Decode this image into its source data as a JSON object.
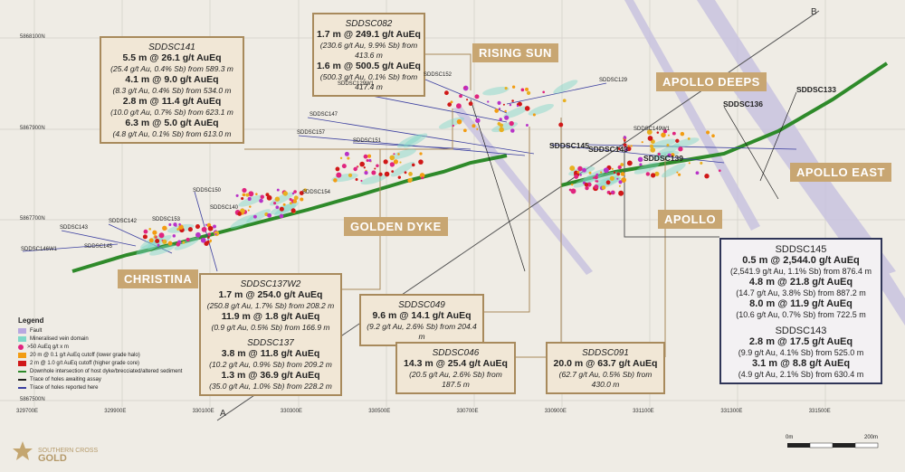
{
  "zones": [
    "RISING SUN",
    "APOLLO DEEPS",
    "APOLLO EAST",
    "APOLLO",
    "GOLDEN DYKE",
    "CHRISTINA"
  ],
  "callouts": [
    {
      "sections": [
        {
          "hole": "SDDSC141",
          "results": [
            {
              "grade": "5.5 m @ 26.1 g/t AuEq",
              "detail": "(25.4 g/t Au, 0.4% Sb) from 589.3 m"
            },
            {
              "grade": "4.1 m @ 9.0 g/t AuEq",
              "detail": "(8.3 g/t Au, 0.4% Sb) from 534.0 m"
            },
            {
              "grade": "2.8 m @ 11.4 g/t AuEq",
              "detail": "(10.0 g/t Au, 0.7% Sb) from 623.1 m"
            },
            {
              "grade": "6.3 m @ 5.0 g/t AuEq",
              "detail": "(4.8 g/t Au, 0.1% Sb) from 613.0 m"
            }
          ]
        }
      ]
    },
    {
      "sections": [
        {
          "hole": "SDDSC082",
          "results": [
            {
              "grade": "1.7 m @ 249.1 g/t AuEq",
              "detail": "(230.6 g/t Au, 9.9% Sb) from 413.6 m"
            },
            {
              "grade": "1.6 m @ 500.5 g/t AuEq",
              "detail": "(500.3 g/t Au, 0.1% Sb) from 417.4 m"
            }
          ]
        }
      ]
    },
    {
      "sections": [
        {
          "hole": "SDDSC137W2",
          "results": [
            {
              "grade": "1.7 m @ 254.0 g/t AuEq",
              "detail": "(250.8 g/t Au, 1.7% Sb) from 208.2 m"
            },
            {
              "grade": "11.9 m @ 1.8 g/t AuEq",
              "detail": "(0.9 g/t Au, 0.5% Sb) from 166.9 m"
            }
          ]
        },
        {
          "hole": "SDDSC137",
          "results": [
            {
              "grade": "3.8 m @ 11.8 g/t AuEq",
              "detail": "(10.2 g/t Au, 0.9% Sb) from 209.2 m"
            },
            {
              "grade": "1.3 m @ 36.9 g/t AuEq",
              "detail": "(35.0 g/t Au, 1.0% Sb) from 228.2 m"
            }
          ]
        }
      ]
    },
    {
      "sections": [
        {
          "hole": "SDDSC049",
          "results": [
            {
              "grade": "9.6 m @ 14.1 g/t AuEq",
              "detail": "(9.2 g/t Au, 2.6% Sb) from 204.4 m"
            }
          ]
        }
      ]
    },
    {
      "sections": [
        {
          "hole": "SDDSC046",
          "results": [
            {
              "grade": "14.3 m @ 25.4 g/t AuEq",
              "detail": "(20.5 g/t Au, 2.6% Sb) from 187.5 m"
            }
          ]
        }
      ]
    },
    {
      "sections": [
        {
          "hole": "SDDSC091",
          "results": [
            {
              "grade": "20.0 m @ 63.7 g/t AuEq",
              "detail": "(62.7 g/t Au, 0.5% Sb) from 430.0 m"
            }
          ]
        }
      ]
    },
    {
      "sections": [
        {
          "hole": "SDDSC145",
          "results": [
            {
              "grade": "0.5 m @ 2,544.0 g/t AuEq",
              "detail": "(2,541.9 g/t Au, 1.1% Sb) from 876.4 m"
            },
            {
              "grade": "4.8 m @ 21.8 g/t AuEq",
              "detail": "(14.7 g/t Au, 3.8% Sb) from 887.2 m"
            },
            {
              "grade": "8.0 m @ 11.9 g/t AuEq",
              "detail": "(10.6 g/t Au, 0.7% Sb) from 722.5 m"
            }
          ]
        },
        {
          "hole": "SDDSC143",
          "results": [
            {
              "grade": "2.8 m @ 17.5 g/t AuEq",
              "detail": "(9.9 g/t Au, 4.1% Sb) from 525.0 m"
            },
            {
              "grade": "3.1 m @ 8.8 g/t AuEq",
              "detail": "(4.9 g/t Au, 2.1% Sb) from 630.4 m"
            }
          ]
        }
      ]
    }
  ],
  "hole_labels": [
    "SDDSC129W1",
    "SDDSC152",
    "SDDSC129",
    "SDDSC147",
    "SDDSC157",
    "SDDSC151",
    "SDDSC150",
    "SDDSC154",
    "SDDSC140",
    "SDDSC142",
    "SDDSC153",
    "SDDSC143",
    "SDDSC146W1",
    "SDDSC145",
    "SDDSC149W1"
  ],
  "key_holes": [
    "SDDSC133",
    "SDDSC136",
    "SDDSC145",
    "SDDSC143",
    "SDDSC139"
  ],
  "northings": [
    "5868100N",
    "5867900N",
    "5867700N",
    "5867500N"
  ],
  "eastings": [
    "329700E",
    "329900E",
    "330100E",
    "330300E",
    "330500E",
    "330700E",
    "330900E",
    "331100E",
    "331300E",
    "331500E"
  ],
  "legend": {
    "title": "Legend",
    "items": [
      "Fault",
      "Mineralised vein domain",
      ">50 AuEq g/t x m",
      "20 m @ 0.1 g/t AuEq cutoff (lower grade halo)",
      "2 m @ 1.0 g/t AuEq cutoff (higher grade core)",
      "Downhole intersection of host dyke/brecciated/altered sediment",
      "Trace of holes awaiting assay",
      "Trace of holes reported here"
    ]
  },
  "section_ends": [
    "A",
    "B"
  ],
  "scale": [
    "0m",
    "200m"
  ],
  "logo": [
    "SOUTHERN CROSS",
    "GOLD"
  ]
}
